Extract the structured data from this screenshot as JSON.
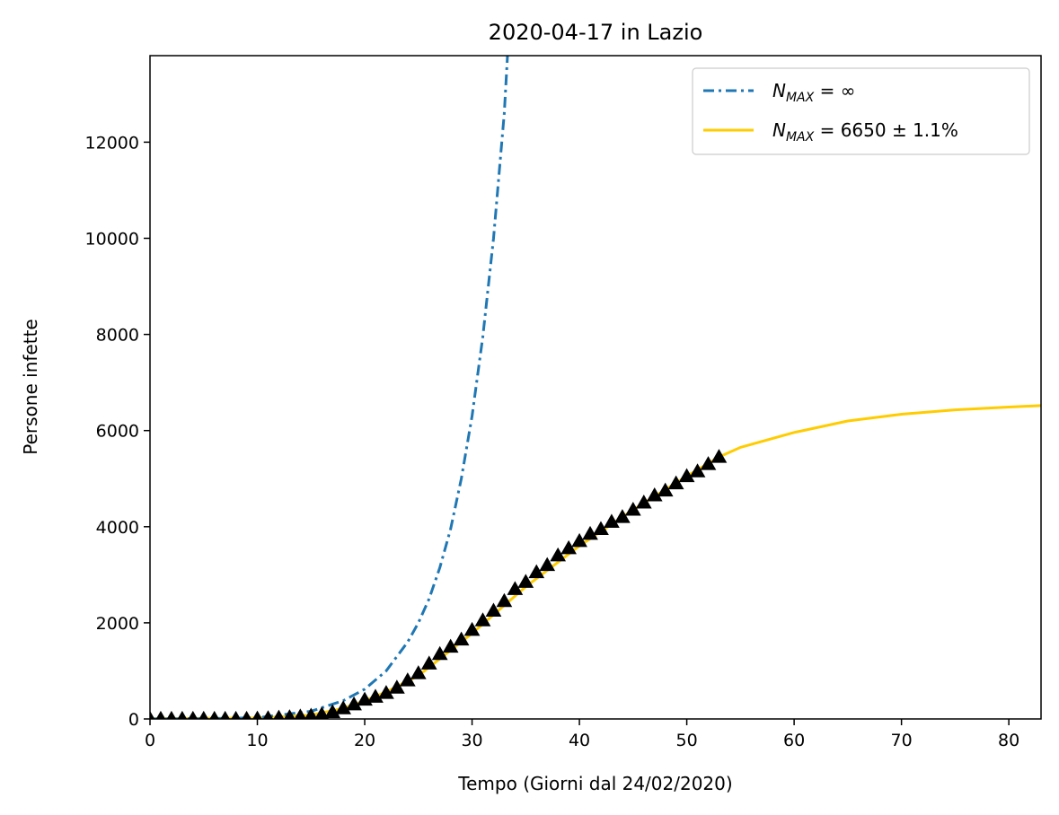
{
  "chart_data": {
    "type": "line",
    "title": "2020-04-17 in Lazio",
    "xlabel": "Tempo (Giorni dal 24/02/2020)",
    "ylabel": "Persone infette",
    "xlim": [
      0,
      83
    ],
    "ylim": [
      0,
      13800
    ],
    "xticks": [
      0,
      10,
      20,
      30,
      40,
      50,
      60,
      70,
      80
    ],
    "yticks": [
      0,
      2000,
      4000,
      6000,
      8000,
      10000,
      12000
    ],
    "grid": false,
    "legend_position": "top-right",
    "colors": {
      "exponential": "#1f77b4",
      "logistic": "#ffcc00",
      "data": "#000000"
    },
    "series": [
      {
        "name": "N_MAX = ∞",
        "legend_parts": {
          "base": "N",
          "sub": "MAX",
          "rest": " = ∞"
        },
        "style": "dashdot",
        "color": "#1f77b4",
        "x": [
          0,
          5,
          10,
          15,
          18,
          20,
          22,
          24,
          25,
          26,
          27,
          28,
          29,
          30,
          31,
          32,
          33,
          33.3
        ],
        "y": [
          1,
          5,
          26,
          160,
          380,
          620,
          1000,
          1600,
          2000,
          2500,
          3150,
          3950,
          5000,
          6300,
          7950,
          10000,
          12600,
          13800
        ]
      },
      {
        "name": "N_MAX = 6650 ± 1.1%",
        "legend_parts": {
          "base": "N",
          "sub": "MAX",
          "rest": " = 6650 ± 1.1%"
        },
        "style": "solid",
        "color": "#ffcc00",
        "x": [
          0,
          10,
          15,
          18,
          20,
          22,
          25,
          30,
          35,
          40,
          45,
          50,
          53,
          55,
          60,
          65,
          70,
          75,
          80,
          83
        ],
        "y": [
          5,
          20,
          80,
          220,
          380,
          560,
          900,
          1780,
          2750,
          3600,
          4350,
          5050,
          5450,
          5650,
          5960,
          6200,
          6340,
          6430,
          6490,
          6520
        ]
      },
      {
        "name": "data",
        "style": "markers",
        "marker": "triangle",
        "color": "#000000",
        "x": [
          0,
          1,
          2,
          3,
          4,
          5,
          6,
          7,
          8,
          9,
          10,
          11,
          12,
          13,
          14,
          15,
          16,
          17,
          18,
          19,
          20,
          21,
          22,
          23,
          24,
          25,
          26,
          27,
          28,
          29,
          30,
          31,
          32,
          33,
          34,
          35,
          36,
          37,
          38,
          39,
          40,
          41,
          42,
          43,
          44,
          45,
          46,
          47,
          48,
          49,
          50,
          51,
          52,
          53
        ],
        "y": [
          3,
          3,
          3,
          3,
          3,
          3,
          3,
          3,
          3,
          3,
          6,
          15,
          25,
          35,
          50,
          65,
          90,
          140,
          220,
          300,
          400,
          460,
          540,
          650,
          800,
          950,
          1150,
          1350,
          1500,
          1650,
          1850,
          2050,
          2250,
          2450,
          2700,
          2850,
          3050,
          3200,
          3400,
          3550,
          3700,
          3850,
          3950,
          4100,
          4200,
          4350,
          4500,
          4650,
          4750,
          4900,
          5050,
          5150,
          5300,
          5450
        ]
      }
    ]
  }
}
